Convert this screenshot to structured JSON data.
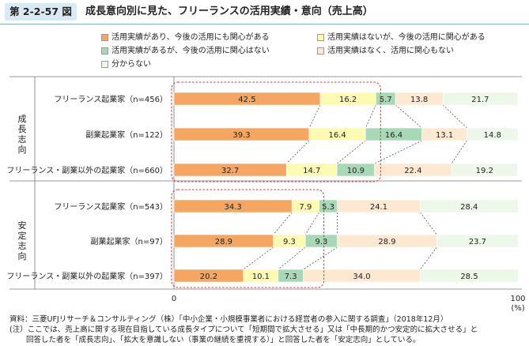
{
  "figure": {
    "number": "第 2-2-57 図",
    "title": "成長意向別に見た、フリーランスの活用実績・意向（売上高）"
  },
  "colors": {
    "s1": "#f5a660",
    "s2": "#fdfbb2",
    "s3": "#a7d9b6",
    "s4": "#fde8d1",
    "s5": "#edf7ea",
    "highlight": "#e23a3a",
    "connector": "#555555"
  },
  "chart_data": {
    "type": "bar",
    "orientation": "horizontal",
    "stacked": true,
    "percent": true,
    "categories": [
      "フリーランス起業家（n=456）",
      "副業起業家（n=122）",
      "フリーランス・副業以外の起業家（n=660）",
      "フリーランス起業家（n=543）",
      "副業起業家（n=97）",
      "フリーランス・副業以外の起業家（n=397）"
    ],
    "groups": [
      {
        "label": "成長志向",
        "rows": [
          0,
          1,
          2
        ]
      },
      {
        "label": "安定志向",
        "rows": [
          3,
          4,
          5
        ]
      }
    ],
    "series": [
      {
        "name": "活用実績があり、今後の活用にも関心がある",
        "values": [
          42.5,
          39.3,
          32.7,
          34.3,
          28.9,
          20.2
        ]
      },
      {
        "name": "活用実績はないが、今後の活用に関心がある",
        "values": [
          16.2,
          16.4,
          14.7,
          7.9,
          9.3,
          10.1
        ]
      },
      {
        "name": "活用実績があるが、今後の活用に関心はない",
        "values": [
          5.7,
          16.4,
          10.9,
          5.3,
          9.3,
          7.3
        ]
      },
      {
        "name": "活用実績はなく、活用に関心もない",
        "values": [
          13.8,
          13.1,
          22.4,
          24.1,
          28.9,
          34.0
        ]
      },
      {
        "name": "分からない",
        "values": [
          21.7,
          14.8,
          19.2,
          28.4,
          23.7,
          28.5
        ]
      }
    ],
    "axis": {
      "min_label": "0",
      "max_label": "100",
      "unit": "(%)"
    },
    "xlim": [
      0,
      100
    ],
    "legend_position": "top"
  },
  "footnotes": {
    "source": "資料：三菱UFJリサーチ＆コンサルティング（株）「中小企業・小規模事業者における経営者の参入に関する調査」（2018年12月）",
    "note_line1": "(注）ここでは、売上高に関する現在目指している成長タイプについて「短期間で拡大させる」又は「中長期的かつ安定的に拡大させる」と",
    "note_line2": "回答した者を「成長志向」、「拡大を意識しない（事業の継続を重視する）」と回答した者を「安定志向」としている。"
  }
}
